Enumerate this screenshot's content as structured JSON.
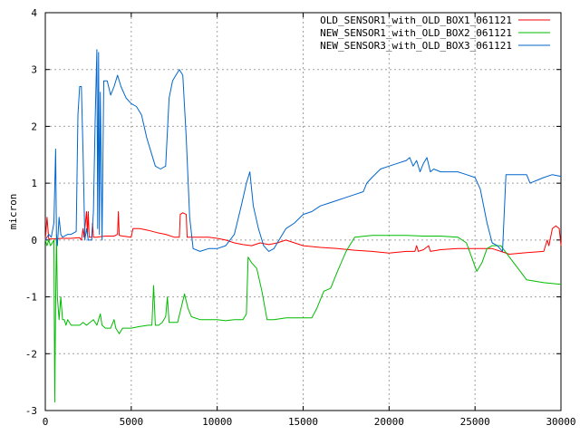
{
  "chart_data": {
    "type": "line",
    "title": "",
    "xlabel": "",
    "ylabel": "micron",
    "xlim": [
      0,
      30000
    ],
    "ylim": [
      -3,
      4
    ],
    "xticks": [
      0,
      5000,
      10000,
      15000,
      20000,
      25000,
      30000
    ],
    "yticks": [
      -3,
      -2,
      -1,
      0,
      1,
      2,
      3,
      4
    ],
    "grid": true,
    "legend_position": "top-right",
    "series": [
      {
        "name": "OLD_SENSOR1_with_OLD_BOX1_061121",
        "color": "#ff0000",
        "points": [
          [
            0,
            0.0
          ],
          [
            100,
            0.4
          ],
          [
            200,
            0.02
          ],
          [
            500,
            0.02
          ],
          [
            1000,
            0.03
          ],
          [
            1500,
            0.03
          ],
          [
            2000,
            0.04
          ],
          [
            2100,
            0.0
          ],
          [
            2200,
            0.2
          ],
          [
            2250,
            0.05
          ],
          [
            2400,
            0.5
          ],
          [
            2450,
            0.1
          ],
          [
            2500,
            0.5
          ],
          [
            2550,
            0.05
          ],
          [
            2700,
            0.05
          ],
          [
            2750,
            0.3
          ],
          [
            2800,
            0.05
          ],
          [
            3000,
            0.05
          ],
          [
            3200,
            0.06
          ],
          [
            3500,
            0.07
          ],
          [
            4000,
            0.07
          ],
          [
            4200,
            0.1
          ],
          [
            4250,
            0.5
          ],
          [
            4300,
            0.08
          ],
          [
            4500,
            0.07
          ],
          [
            5000,
            0.05
          ],
          [
            5100,
            0.2
          ],
          [
            5500,
            0.2
          ],
          [
            6000,
            0.17
          ],
          [
            6500,
            0.13
          ],
          [
            7000,
            0.1
          ],
          [
            7500,
            0.05
          ],
          [
            7800,
            0.05
          ],
          [
            7850,
            0.45
          ],
          [
            8000,
            0.48
          ],
          [
            8200,
            0.45
          ],
          [
            8250,
            0.05
          ],
          [
            8500,
            0.05
          ],
          [
            9000,
            0.05
          ],
          [
            9500,
            0.05
          ],
          [
            10000,
            0.03
          ],
          [
            10500,
            0.0
          ],
          [
            11000,
            -0.05
          ],
          [
            11500,
            -0.08
          ],
          [
            12000,
            -0.1
          ],
          [
            12500,
            -0.05
          ],
          [
            13000,
            -0.08
          ],
          [
            13500,
            -0.05
          ],
          [
            14000,
            0.0
          ],
          [
            14500,
            -0.05
          ],
          [
            15000,
            -0.1
          ],
          [
            16000,
            -0.13
          ],
          [
            17000,
            -0.15
          ],
          [
            18000,
            -0.18
          ],
          [
            19000,
            -0.2
          ],
          [
            20000,
            -0.23
          ],
          [
            21000,
            -0.2
          ],
          [
            21500,
            -0.2
          ],
          [
            21600,
            -0.1
          ],
          [
            21700,
            -0.2
          ],
          [
            22000,
            -0.17
          ],
          [
            22300,
            -0.1
          ],
          [
            22400,
            -0.2
          ],
          [
            23000,
            -0.17
          ],
          [
            24000,
            -0.15
          ],
          [
            25000,
            -0.15
          ],
          [
            25500,
            -0.15
          ],
          [
            26000,
            -0.15
          ],
          [
            26500,
            -0.2
          ],
          [
            27000,
            -0.25
          ],
          [
            28000,
            -0.22
          ],
          [
            29000,
            -0.2
          ],
          [
            29200,
            0.0
          ],
          [
            29300,
            -0.1
          ],
          [
            29500,
            0.2
          ],
          [
            29700,
            0.25
          ],
          [
            29900,
            0.2
          ],
          [
            30000,
            -0.1
          ]
        ]
      },
      {
        "name": "NEW_SENSOR1_with_OLD_BOX2_061121",
        "color": "#00bb00",
        "points": [
          [
            0,
            0.0
          ],
          [
            100,
            -0.1
          ],
          [
            200,
            0.0
          ],
          [
            300,
            -0.1
          ],
          [
            400,
            -0.05
          ],
          [
            500,
            0.0
          ],
          [
            550,
            -2.85
          ],
          [
            600,
            -1.1
          ],
          [
            650,
            0.1
          ],
          [
            700,
            -1.0
          ],
          [
            800,
            -1.4
          ],
          [
            900,
            -1.0
          ],
          [
            1000,
            -1.4
          ],
          [
            1100,
            -1.4
          ],
          [
            1200,
            -1.5
          ],
          [
            1300,
            -1.4
          ],
          [
            1500,
            -1.5
          ],
          [
            2000,
            -1.5
          ],
          [
            2200,
            -1.45
          ],
          [
            2400,
            -1.5
          ],
          [
            2600,
            -1.45
          ],
          [
            2800,
            -1.4
          ],
          [
            3000,
            -1.5
          ],
          [
            3100,
            -1.4
          ],
          [
            3200,
            -1.3
          ],
          [
            3300,
            -1.5
          ],
          [
            3500,
            -1.55
          ],
          [
            3800,
            -1.55
          ],
          [
            4000,
            -1.4
          ],
          [
            4100,
            -1.55
          ],
          [
            4300,
            -1.65
          ],
          [
            4500,
            -1.55
          ],
          [
            5000,
            -1.55
          ],
          [
            5500,
            -1.52
          ],
          [
            6000,
            -1.5
          ],
          [
            6200,
            -1.5
          ],
          [
            6300,
            -0.8
          ],
          [
            6400,
            -1.5
          ],
          [
            6600,
            -1.5
          ],
          [
            6800,
            -1.45
          ],
          [
            7000,
            -1.35
          ],
          [
            7100,
            -1.0
          ],
          [
            7200,
            -1.45
          ],
          [
            7500,
            -1.45
          ],
          [
            7700,
            -1.45
          ],
          [
            7900,
            -1.2
          ],
          [
            8100,
            -0.95
          ],
          [
            8300,
            -1.2
          ],
          [
            8500,
            -1.35
          ],
          [
            9000,
            -1.4
          ],
          [
            10000,
            -1.4
          ],
          [
            10500,
            -1.42
          ],
          [
            11000,
            -1.4
          ],
          [
            11500,
            -1.4
          ],
          [
            11700,
            -1.3
          ],
          [
            11800,
            -0.3
          ],
          [
            12000,
            -0.4
          ],
          [
            12300,
            -0.5
          ],
          [
            12600,
            -0.9
          ],
          [
            12900,
            -1.4
          ],
          [
            13300,
            -1.4
          ],
          [
            14000,
            -1.37
          ],
          [
            15000,
            -1.37
          ],
          [
            15500,
            -1.37
          ],
          [
            15800,
            -1.2
          ],
          [
            16200,
            -0.9
          ],
          [
            16600,
            -0.85
          ],
          [
            17000,
            -0.55
          ],
          [
            17500,
            -0.2
          ],
          [
            18000,
            0.05
          ],
          [
            19000,
            0.08
          ],
          [
            20000,
            0.08
          ],
          [
            21000,
            0.08
          ],
          [
            22000,
            0.07
          ],
          [
            23000,
            0.07
          ],
          [
            24000,
            0.05
          ],
          [
            24500,
            -0.05
          ],
          [
            24800,
            -0.3
          ],
          [
            25100,
            -0.55
          ],
          [
            25400,
            -0.4
          ],
          [
            25700,
            -0.15
          ],
          [
            26000,
            -0.1
          ],
          [
            26500,
            -0.1
          ],
          [
            27000,
            -0.3
          ],
          [
            27500,
            -0.5
          ],
          [
            28000,
            -0.7
          ],
          [
            29000,
            -0.75
          ],
          [
            30000,
            -0.78
          ]
        ]
      },
      {
        "name": "NEW_SENSOR3_with_OLD_BOX3_061121",
        "color": "#0066cc",
        "points": [
          [
            0,
            0.0
          ],
          [
            200,
            0.1
          ],
          [
            350,
            0.05
          ],
          [
            500,
            0.3
          ],
          [
            600,
            1.6
          ],
          [
            650,
            0.1
          ],
          [
            700,
            -0.1
          ],
          [
            800,
            0.4
          ],
          [
            900,
            0.1
          ],
          [
            1000,
            0.05
          ],
          [
            1300,
            0.1
          ],
          [
            1500,
            0.1
          ],
          [
            1800,
            0.15
          ],
          [
            1900,
            2.2
          ],
          [
            2000,
            2.7
          ],
          [
            2100,
            2.7
          ],
          [
            2200,
            1.5
          ],
          [
            2300,
            0.0
          ],
          [
            2400,
            0.2
          ],
          [
            2500,
            0.0
          ],
          [
            2700,
            0.0
          ],
          [
            2800,
            0.5
          ],
          [
            2900,
            2.1
          ],
          [
            3000,
            3.35
          ],
          [
            3050,
            0.2
          ],
          [
            3100,
            3.3
          ],
          [
            3150,
            0.1
          ],
          [
            3200,
            2.6
          ],
          [
            3300,
            0.0
          ],
          [
            3400,
            2.8
          ],
          [
            3600,
            2.8
          ],
          [
            3800,
            2.55
          ],
          [
            4000,
            2.7
          ],
          [
            4200,
            2.9
          ],
          [
            4400,
            2.7
          ],
          [
            4700,
            2.5
          ],
          [
            5000,
            2.4
          ],
          [
            5300,
            2.35
          ],
          [
            5600,
            2.2
          ],
          [
            5900,
            1.8
          ],
          [
            6200,
            1.5
          ],
          [
            6400,
            1.3
          ],
          [
            6700,
            1.25
          ],
          [
            7000,
            1.3
          ],
          [
            7200,
            2.5
          ],
          [
            7400,
            2.8
          ],
          [
            7600,
            2.9
          ],
          [
            7800,
            3.0
          ],
          [
            8000,
            2.9
          ],
          [
            8200,
            1.8
          ],
          [
            8400,
            0.4
          ],
          [
            8600,
            -0.15
          ],
          [
            9000,
            -0.2
          ],
          [
            9500,
            -0.15
          ],
          [
            10000,
            -0.15
          ],
          [
            10500,
            -0.1
          ],
          [
            11000,
            0.1
          ],
          [
            11400,
            0.6
          ],
          [
            11700,
            1.0
          ],
          [
            11900,
            1.2
          ],
          [
            12100,
            0.6
          ],
          [
            12400,
            0.2
          ],
          [
            12700,
            -0.1
          ],
          [
            13000,
            -0.2
          ],
          [
            13300,
            -0.15
          ],
          [
            13600,
            0.0
          ],
          [
            14000,
            0.2
          ],
          [
            14500,
            0.3
          ],
          [
            15000,
            0.45
          ],
          [
            15500,
            0.5
          ],
          [
            16000,
            0.6
          ],
          [
            16500,
            0.65
          ],
          [
            17000,
            0.7
          ],
          [
            17500,
            0.75
          ],
          [
            18000,
            0.8
          ],
          [
            18500,
            0.85
          ],
          [
            18700,
            1.0
          ],
          [
            19000,
            1.1
          ],
          [
            19500,
            1.25
          ],
          [
            20000,
            1.3
          ],
          [
            20500,
            1.35
          ],
          [
            21000,
            1.4
          ],
          [
            21200,
            1.45
          ],
          [
            21400,
            1.3
          ],
          [
            21600,
            1.4
          ],
          [
            21800,
            1.2
          ],
          [
            22000,
            1.35
          ],
          [
            22200,
            1.45
          ],
          [
            22400,
            1.2
          ],
          [
            22600,
            1.25
          ],
          [
            23000,
            1.2
          ],
          [
            23500,
            1.2
          ],
          [
            24000,
            1.2
          ],
          [
            24500,
            1.15
          ],
          [
            25000,
            1.1
          ],
          [
            25300,
            0.9
          ],
          [
            25700,
            0.3
          ],
          [
            26000,
            -0.05
          ],
          [
            26300,
            -0.1
          ],
          [
            26600,
            -0.2
          ],
          [
            26800,
            1.15
          ],
          [
            27200,
            1.15
          ],
          [
            27600,
            1.15
          ],
          [
            28000,
            1.15
          ],
          [
            28200,
            1.0
          ],
          [
            28600,
            1.05
          ],
          [
            29000,
            1.1
          ],
          [
            29500,
            1.15
          ],
          [
            30000,
            1.12
          ]
        ]
      }
    ]
  }
}
